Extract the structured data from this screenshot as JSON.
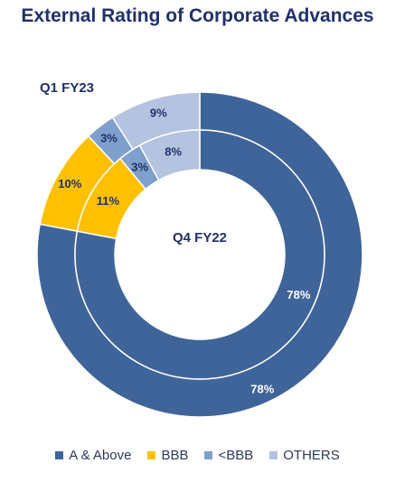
{
  "title": "External Rating of Corporate Advances",
  "chart_data": {
    "type": "donut",
    "categories": [
      "A & Above",
      "BBB",
      "<BBB",
      "OTHERS"
    ],
    "colors": [
      "#3f6499",
      "#ffc000",
      "#7f9fcc",
      "#b4c3e0"
    ],
    "series": [
      {
        "name": "Q1 FY23",
        "ring": "outer",
        "values": [
          78,
          10,
          3,
          9
        ]
      },
      {
        "name": "Q4 FY22",
        "ring": "inner",
        "values": [
          78,
          11,
          3,
          8
        ]
      }
    ],
    "value_suffix": "%"
  }
}
